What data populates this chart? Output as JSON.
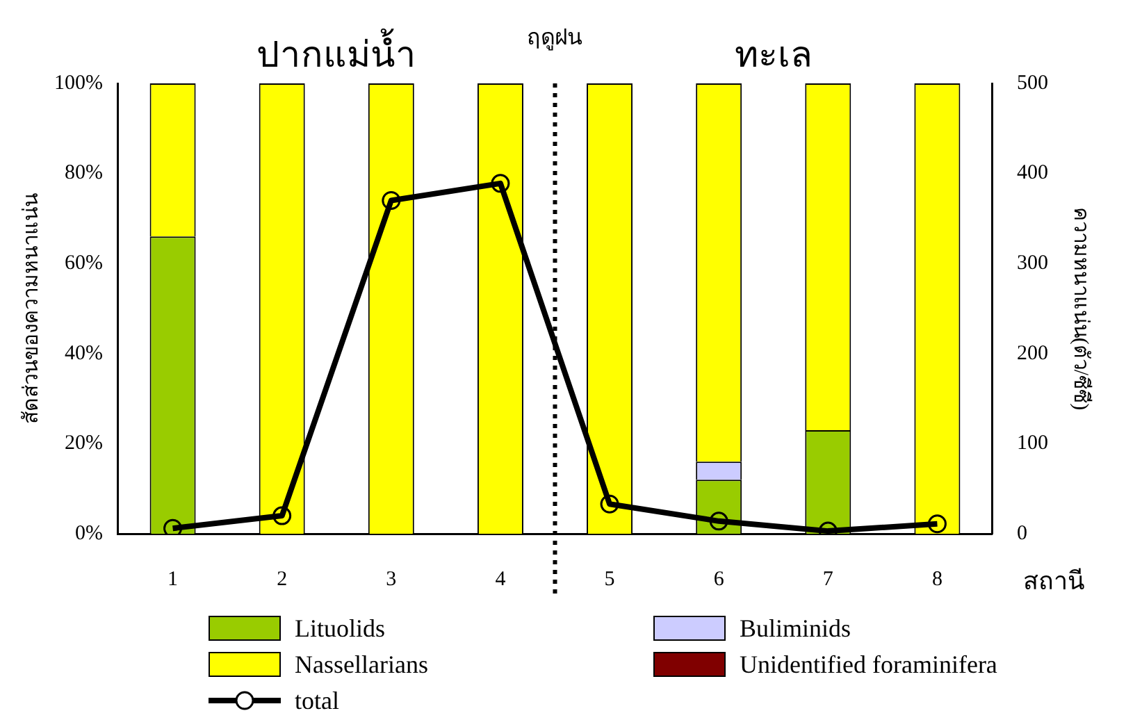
{
  "chart_data": {
    "type": "bar",
    "stacked": true,
    "annotations": [
      "ปากแม่น้ำ",
      "ทะเล"
    ],
    "xlabel": "สถานี",
    "ylabel": "สัดส่วนของความหนาแน่น",
    "y2label": "ความหนาแน่น(ตัว/ซีซี)",
    "x": [
      1,
      2,
      3,
      4,
      5,
      6,
      7,
      8
    ],
    "xlim": [
      0.5,
      8.5
    ],
    "xticks": [
      1,
      2,
      3,
      4,
      5,
      6,
      7,
      8
    ],
    "ylim": [
      0,
      100
    ],
    "yticks": [
      {
        "value": 0,
        "label": "0%"
      },
      {
        "value": 20,
        "label": "20%"
      },
      {
        "value": 40,
        "label": "40%"
      },
      {
        "value": 60,
        "label": "60%"
      },
      {
        "value": 80,
        "label": "80%"
      },
      {
        "value": 100,
        "label": "100%"
      }
    ],
    "y2lim": [
      0,
      500
    ],
    "y2ticks": [
      0,
      100,
      200,
      300,
      400,
      500
    ],
    "series": [
      {
        "name": "Lituolids",
        "color": "#99cc00",
        "values": [
          66,
          0,
          0,
          0,
          0,
          12,
          23,
          0
        ]
      },
      {
        "name": "Buliminids",
        "color": "#ccccff",
        "values": [
          0,
          0,
          0,
          0,
          0,
          4,
          0,
          0
        ]
      },
      {
        "name": "Nassellarians",
        "color": "#ffff00",
        "values": [
          34,
          100,
          100,
          100,
          100,
          84,
          77,
          100
        ]
      },
      {
        "name": "Unidentified foraminifera",
        "color": "#800000",
        "values": [
          0,
          0,
          0,
          0,
          0,
          0,
          0,
          0
        ]
      },
      {
        "name": "total",
        "type": "line",
        "axis": "y2",
        "color": "#000000",
        "marker": "circle",
        "values": [
          6,
          20,
          370,
          389,
          33,
          14,
          3,
          11
        ]
      }
    ],
    "ref_lines": [
      {
        "axis": "x",
        "value": 4.5,
        "label": "ฤดูฝน",
        "line_style": "dotted",
        "color": "#000000"
      }
    ],
    "grid": false,
    "legend": "bottom"
  }
}
